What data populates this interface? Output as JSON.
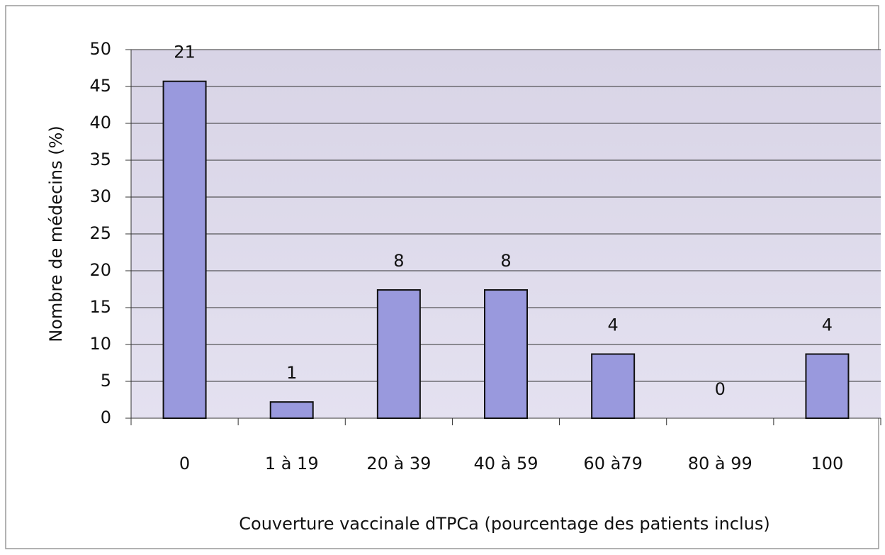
{
  "chart_data": {
    "type": "bar",
    "categories": [
      "0",
      "1 à 19",
      "20 à 39",
      "40 à 59",
      "60 à79",
      "80 à 99",
      "100"
    ],
    "values": [
      45.7,
      2.2,
      17.4,
      17.4,
      8.7,
      0,
      8.7
    ],
    "counts": [
      21,
      1,
      8,
      8,
      4,
      0,
      4
    ],
    "color": "#9999dd",
    "x_label": "Couverture vaccinale dTPCa (pourcentage des patients inclus)",
    "y_label": "Nombre de médecins (%)",
    "ylim": [
      0,
      50
    ],
    "yticks": [
      0,
      5,
      10,
      15,
      20,
      25,
      30,
      35,
      40,
      45,
      50
    ],
    "grid": true
  }
}
